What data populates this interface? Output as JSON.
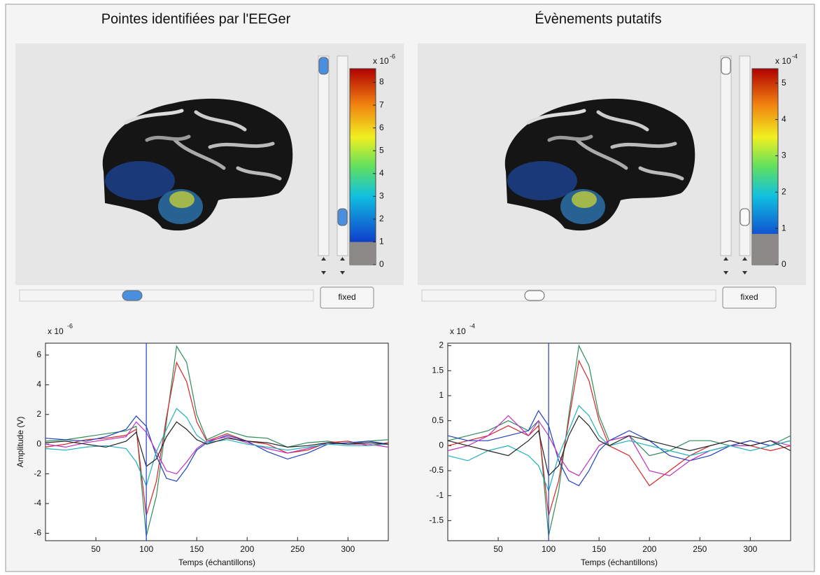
{
  "panels": [
    {
      "title": "Pointes identifiées par l'EEGer",
      "colorbar": {
        "exponent_base": "x 10",
        "exponent": "-6",
        "lim": [
          0,
          8.6
        ],
        "ticks": [
          0,
          1,
          2,
          3,
          4,
          5,
          6,
          7,
          8
        ],
        "threshold": 1
      },
      "button": "fixed",
      "chart": {
        "type": "line",
        "exponent_base": "x 10",
        "exponent": "-6",
        "ylabel": "Amplitude (V)",
        "xlabel": "Temps (échantillons)",
        "xlim": [
          0,
          340
        ],
        "ylim": [
          -6.5,
          6.8
        ],
        "xticks": [
          50,
          100,
          150,
          200,
          250,
          300
        ],
        "yticks": [
          -6,
          -4,
          -2,
          0,
          2,
          4,
          6
        ],
        "cursor_x": 100,
        "x": [
          0,
          20,
          40,
          60,
          80,
          90,
          100,
          110,
          120,
          130,
          140,
          150,
          160,
          180,
          200,
          220,
          240,
          260,
          280,
          300,
          320,
          340
        ],
        "series": [
          {
            "color": "#2e8b57",
            "values": [
              0.2,
              0.3,
              0.5,
              0.7,
              0.9,
              1.2,
              -6.2,
              -3.5,
              1.5,
              6.6,
              5.5,
              2,
              0.3,
              0.9,
              0.5,
              0.4,
              -0.2,
              0.1,
              0.2,
              0,
              0.2,
              0.3
            ]
          },
          {
            "color": "#d62728",
            "values": [
              -0.2,
              0,
              0.3,
              0.4,
              0.6,
              1,
              -4.8,
              -2.5,
              1.8,
              5.5,
              4.2,
              1.5,
              0.2,
              0.7,
              0.2,
              0,
              -0.6,
              -0.4,
              0.1,
              0.2,
              -0.1,
              0.1
            ]
          },
          {
            "color": "#1f3fbf",
            "values": [
              0.4,
              0.3,
              0.2,
              0.5,
              1,
              1.9,
              1.2,
              -0.8,
              -2.3,
              -2.5,
              -1.6,
              -0.4,
              0.1,
              0.6,
              0.2,
              -0.5,
              -1,
              -0.6,
              0,
              0.1,
              0.2,
              0
            ]
          },
          {
            "color": "#c030c0",
            "values": [
              0,
              -0.2,
              0.1,
              0.3,
              0.5,
              1.5,
              0.8,
              -0.5,
              -1.8,
              -2,
              -1.2,
              -0.3,
              0.2,
              0.5,
              0.1,
              -0.3,
              -0.6,
              -0.3,
              0.1,
              0,
              0,
              -0.2
            ]
          },
          {
            "color": "#20b0c0",
            "values": [
              -0.3,
              -0.4,
              -0.2,
              -0.1,
              -0.3,
              -1.2,
              -2.8,
              -0.5,
              1,
              2.4,
              1.8,
              0.6,
              0.1,
              0.3,
              0,
              -0.2,
              -0.4,
              -0.2,
              0,
              -0.1,
              -0.1,
              0
            ]
          },
          {
            "color": "#222222",
            "values": [
              0.1,
              0.2,
              0,
              -0.2,
              0.2,
              0.8,
              -1.5,
              -1,
              0.5,
              1.5,
              1,
              0.3,
              0,
              0.4,
              0.2,
              0.1,
              -0.2,
              -0.1,
              0.1,
              0,
              0.1,
              0
            ]
          }
        ]
      }
    },
    {
      "title": "Évènements putatifs",
      "colorbar": {
        "exponent_base": "x 10",
        "exponent": "-4",
        "lim": [
          0,
          5.4
        ],
        "ticks": [
          0,
          1,
          2,
          3,
          4,
          5
        ],
        "threshold": 0.85
      },
      "button": "fixed",
      "chart": {
        "type": "line",
        "exponent_base": "x 10",
        "exponent": "-4",
        "xlabel": "Temps (échantillons)",
        "xlim": [
          0,
          340
        ],
        "ylim": [
          -1.9,
          2.05
        ],
        "xticks": [
          50,
          100,
          150,
          200,
          250,
          300
        ],
        "yticks": [
          -1.5,
          -1,
          -0.5,
          0,
          0.5,
          1,
          1.5,
          2
        ],
        "cursor_x": 100,
        "x": [
          0,
          20,
          40,
          60,
          80,
          90,
          100,
          110,
          120,
          130,
          140,
          150,
          160,
          180,
          200,
          220,
          240,
          260,
          280,
          300,
          320,
          340
        ],
        "series": [
          {
            "color": "#2e8b57",
            "values": [
              0.1,
              0.2,
              0.3,
              0.5,
              0.3,
              0.5,
              -1.8,
              -0.9,
              0.6,
              2,
              1.6,
              0.6,
              0.1,
              0.2,
              -0.2,
              -0.1,
              0.1,
              0.1,
              0,
              0.1,
              0,
              0.2
            ]
          },
          {
            "color": "#d62728",
            "values": [
              0,
              0.1,
              0.2,
              0.4,
              0.2,
              0.4,
              -1.4,
              -0.7,
              0.5,
              1.7,
              1.3,
              0.5,
              0,
              -0.2,
              -0.8,
              -0.5,
              -0.2,
              0,
              0.1,
              0,
              -0.1,
              0
            ]
          },
          {
            "color": "#1f3fbf",
            "values": [
              0.2,
              0.1,
              0.1,
              0.2,
              0.3,
              0.7,
              0.4,
              -0.3,
              -0.7,
              -0.8,
              -0.5,
              -0.1,
              0.1,
              0.3,
              0.1,
              -0.2,
              -0.3,
              -0.2,
              0,
              0.1,
              0,
              0.1
            ]
          },
          {
            "color": "#c030c0",
            "values": [
              -0.1,
              0,
              0.2,
              0.6,
              0.2,
              0.5,
              0.2,
              -0.2,
              -0.5,
              -0.6,
              -0.3,
              0,
              0.1,
              0.2,
              -0.5,
              -0.6,
              -0.3,
              -0.1,
              0,
              0,
              0.1,
              0
            ]
          },
          {
            "color": "#20b0c0",
            "values": [
              -0.2,
              -0.3,
              -0.1,
              0,
              -0.2,
              -0.4,
              -0.9,
              -0.2,
              0.3,
              0.8,
              0.6,
              0.2,
              0,
              0.1,
              0,
              -0.1,
              -0.2,
              -0.1,
              0,
              -0.1,
              0,
              0.1
            ]
          },
          {
            "color": "#222222",
            "values": [
              0.1,
              0,
              -0.1,
              -0.2,
              0.1,
              0.3,
              -0.6,
              -0.4,
              0.2,
              0.6,
              0.4,
              0.1,
              0,
              0.2,
              0.1,
              0,
              -0.1,
              0,
              0.1,
              0,
              0.1,
              -0.1
            ]
          }
        ]
      }
    }
  ]
}
